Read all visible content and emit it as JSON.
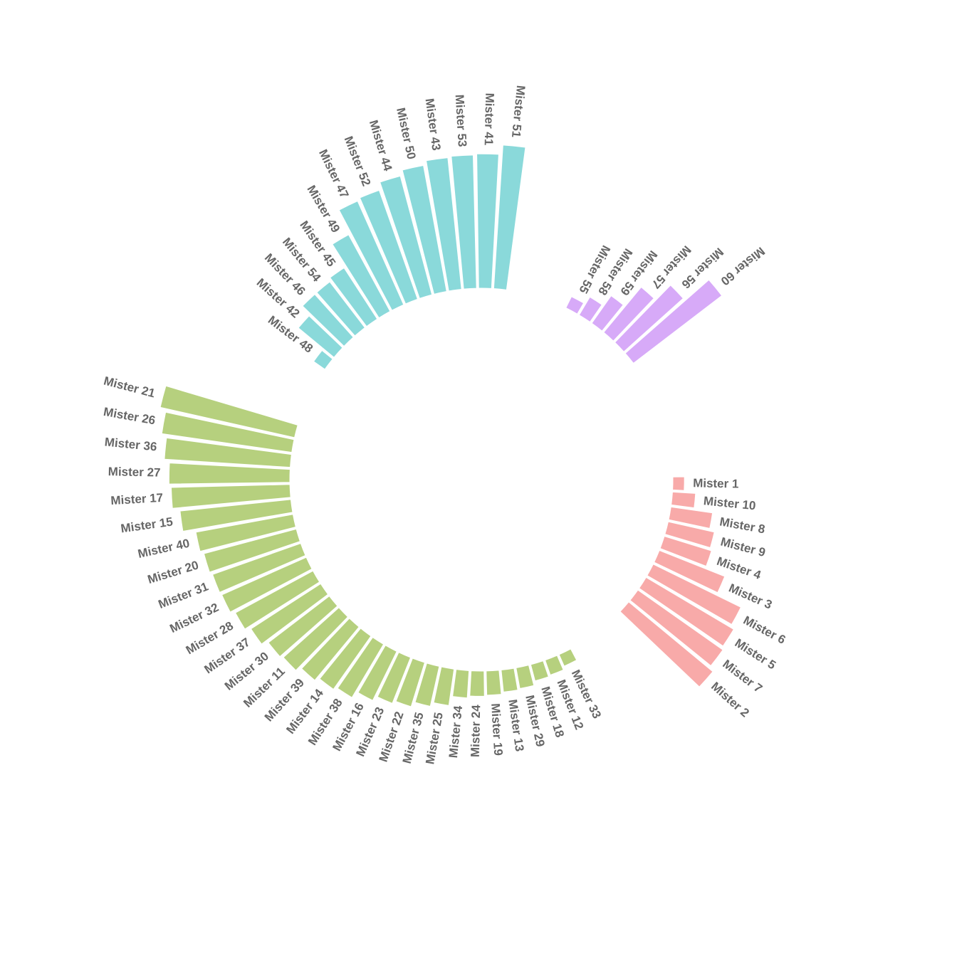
{
  "chart_data": {
    "type": "bar",
    "layout": "circular",
    "title": "",
    "xlabel": "",
    "ylabel": "",
    "grid": false,
    "legend": "none",
    "colors": {
      "A": "#F8AAA9",
      "B": "#B6D07E",
      "C": "#8AD9DA",
      "D": "#D7AAF8"
    },
    "groups": [
      {
        "name": "A",
        "color": "#F8AAA9",
        "categories": [
          "Mister 1",
          "Mister 10",
          "Mister 8",
          "Mister 9",
          "Mister 4",
          "Mister 3",
          "Mister 6",
          "Mister 5",
          "Mister 7",
          "Mister 2"
        ],
        "values": [
          11,
          22,
          40,
          45,
          47,
          67,
          93,
          97,
          99,
          104
        ]
      },
      {
        "name": "B",
        "color": "#B6D07E",
        "categories": [
          "Mister 33",
          "Mister 12",
          "Mister 18",
          "Mister 29",
          "Mister 13",
          "Mister 19",
          "Mister 24",
          "Mister 34",
          "Mister 25",
          "Mister 35",
          "Mister 22",
          "Mister 23",
          "Mister 16",
          "Mister 38",
          "Mister 14",
          "Mister 39",
          "Mister 11",
          "Mister 30",
          "Mister 37",
          "Mister 28",
          "Mister 32",
          "Mister 31",
          "Mister 20",
          "Mister 40",
          "Mister 15",
          "Mister 17",
          "Mister 27",
          "Mister 36",
          "Mister 26",
          "Mister 21"
        ],
        "values": [
          12,
          15,
          16,
          20,
          21,
          23,
          24,
          26,
          35,
          39,
          44,
          47,
          52,
          59,
          62,
          66,
          71,
          73,
          79,
          84,
          88,
          89,
          91,
          94,
          106,
          113,
          115,
          120,
          125,
          131
        ]
      },
      {
        "name": "C",
        "color": "#8AD9DA",
        "categories": [
          "Mister 48",
          "Mister 42",
          "Mister 46",
          "Mister 54",
          "Mister 45",
          "Mister 49",
          "Mister 47",
          "Mister 52",
          "Mister 44",
          "Mister 50",
          "Mister 43",
          "Mister 53",
          "Mister 41",
          "Mister 51"
        ],
        "values": [
          13,
          44,
          55,
          55,
          58,
          83,
          108,
          110,
          117,
          122,
          126,
          127,
          128,
          137
        ]
      },
      {
        "name": "D",
        "color": "#D7AAF8",
        "categories": [
          "Mister 55",
          "Mister 58",
          "Mister 59",
          "Mister 57",
          "Mister 56",
          "Mister 60"
        ],
        "values": [
          12,
          20,
          32,
          56,
          76,
          106
        ]
      }
    ]
  }
}
